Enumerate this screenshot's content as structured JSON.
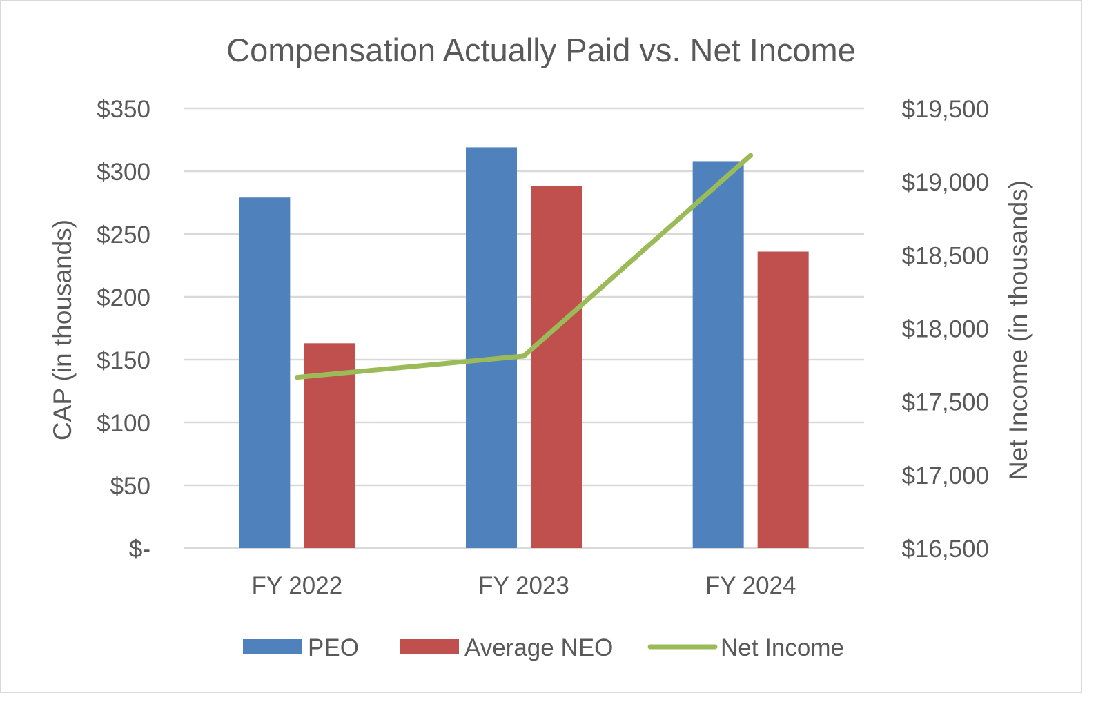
{
  "chart_data": {
    "type": "bar",
    "title": "Compensation Actually Paid vs. Net Income",
    "categories": [
      "FY 2022",
      "FY 2023",
      "FY 2024"
    ],
    "series": [
      {
        "name": "PEO",
        "type": "bar",
        "axis": "left",
        "color": "#4f81bd",
        "values": [
          279,
          319,
          308
        ]
      },
      {
        "name": "Average NEO",
        "type": "bar",
        "axis": "left",
        "color": "#c0504d",
        "values": [
          163,
          288,
          236
        ]
      },
      {
        "name": "Net Income",
        "type": "line",
        "axis": "right",
        "color": "#9bbb59",
        "values": [
          17665,
          17810,
          19180
        ]
      }
    ],
    "ylabel_left": "CAP (in thousands)",
    "ylabel_right": "Net Income (in thousands)",
    "ylim_left": [
      0,
      350
    ],
    "ylim_right": [
      16500,
      19500
    ],
    "yticks_left": [
      {
        "value": 0,
        "label": "$-"
      },
      {
        "value": 50,
        "label": "$50"
      },
      {
        "value": 100,
        "label": "$100"
      },
      {
        "value": 150,
        "label": "$150"
      },
      {
        "value": 200,
        "label": "$200"
      },
      {
        "value": 250,
        "label": "$250"
      },
      {
        "value": 300,
        "label": "$300"
      },
      {
        "value": 350,
        "label": "$350"
      }
    ],
    "yticks_right": [
      {
        "value": 16500,
        "label": "$16,500"
      },
      {
        "value": 17000,
        "label": "$17,000"
      },
      {
        "value": 17500,
        "label": "$17,500"
      },
      {
        "value": 18000,
        "label": "$18,000"
      },
      {
        "value": 18500,
        "label": "$18,500"
      },
      {
        "value": 19000,
        "label": "$19,000"
      },
      {
        "value": 19500,
        "label": "$19,500"
      }
    ],
    "grid": true,
    "legend_position": "bottom"
  }
}
